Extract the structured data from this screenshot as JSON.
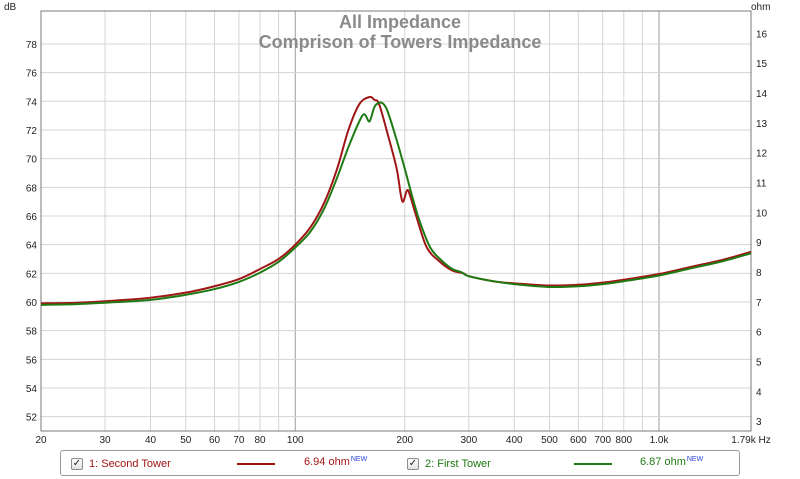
{
  "chart_data": {
    "type": "line",
    "title": "All Impedance",
    "subtitle": "Comprison of Towers Impedance",
    "x_unit": "Hz",
    "y_left_unit": "dB",
    "y_right_unit": "ohm",
    "x_scale": "log",
    "xlim": [
      20,
      1790
    ],
    "ylim_left": [
      51,
      80.3
    ],
    "ylim_right": [
      2.67,
      16.75
    ],
    "x_ticks": [
      {
        "v": 20,
        "label": "20",
        "major": true
      },
      {
        "v": 30,
        "label": "30",
        "major": false
      },
      {
        "v": 40,
        "label": "40",
        "major": false
      },
      {
        "v": 50,
        "label": "50",
        "major": false
      },
      {
        "v": 60,
        "label": "60",
        "major": false
      },
      {
        "v": 70,
        "label": "70",
        "major": false
      },
      {
        "v": 80,
        "label": "80",
        "major": false
      },
      {
        "v": 90,
        "label": "",
        "major": false
      },
      {
        "v": 100,
        "label": "100",
        "major": true
      },
      {
        "v": 200,
        "label": "200",
        "major": false
      },
      {
        "v": 300,
        "label": "300",
        "major": false
      },
      {
        "v": 400,
        "label": "400",
        "major": false
      },
      {
        "v": 500,
        "label": "500",
        "major": false
      },
      {
        "v": 600,
        "label": "600",
        "major": false
      },
      {
        "v": 700,
        "label": "700",
        "major": false
      },
      {
        "v": 800,
        "label": "800",
        "major": false
      },
      {
        "v": 900,
        "label": "",
        "major": false
      },
      {
        "v": 1000,
        "label": "1.0k",
        "major": true
      },
      {
        "v": 1790,
        "label": "1.79k Hz",
        "major": false
      }
    ],
    "y_left_ticks": [
      52,
      54,
      56,
      58,
      60,
      62,
      64,
      66,
      68,
      70,
      72,
      74,
      76,
      78
    ],
    "y_right_ticks": [
      3,
      4,
      5,
      6,
      7,
      8,
      9,
      10,
      11,
      12,
      13,
      14,
      15,
      16
    ],
    "grid": true,
    "legend_position": "bottom",
    "series": [
      {
        "name": "1: Second Tower",
        "color": "#a01515",
        "checked": true,
        "value_label": "6.94 ohm",
        "badge": "NEW",
        "points": [
          [
            20,
            59.9
          ],
          [
            25,
            59.95
          ],
          [
            30,
            60.05
          ],
          [
            40,
            60.3
          ],
          [
            50,
            60.65
          ],
          [
            60,
            61.1
          ],
          [
            70,
            61.6
          ],
          [
            80,
            62.3
          ],
          [
            90,
            63.0
          ],
          [
            100,
            64.0
          ],
          [
            110,
            65.2
          ],
          [
            120,
            66.9
          ],
          [
            130,
            69.2
          ],
          [
            140,
            72.0
          ],
          [
            150,
            73.8
          ],
          [
            160,
            74.3
          ],
          [
            165,
            74.1
          ],
          [
            170,
            73.8
          ],
          [
            180,
            71.6
          ],
          [
            190,
            69.3
          ],
          [
            195,
            67.5
          ],
          [
            198,
            67.0
          ],
          [
            203,
            67.8
          ],
          [
            207,
            67.4
          ],
          [
            215,
            66.0
          ],
          [
            230,
            63.8
          ],
          [
            250,
            62.8
          ],
          [
            270,
            62.2
          ],
          [
            290,
            62.0
          ],
          [
            300,
            61.8
          ],
          [
            350,
            61.45
          ],
          [
            400,
            61.3
          ],
          [
            500,
            61.15
          ],
          [
            600,
            61.2
          ],
          [
            700,
            61.35
          ],
          [
            800,
            61.55
          ],
          [
            1000,
            61.95
          ],
          [
            1200,
            62.4
          ],
          [
            1500,
            62.95
          ],
          [
            1790,
            63.5
          ]
        ]
      },
      {
        "name": "2: First Tower",
        "color": "#1e7a12",
        "checked": true,
        "value_label": "6.87 ohm",
        "badge": "NEW",
        "points": [
          [
            20,
            59.8
          ],
          [
            25,
            59.85
          ],
          [
            30,
            59.95
          ],
          [
            40,
            60.15
          ],
          [
            50,
            60.5
          ],
          [
            60,
            60.9
          ],
          [
            70,
            61.4
          ],
          [
            80,
            62.05
          ],
          [
            90,
            62.8
          ],
          [
            100,
            63.8
          ],
          [
            110,
            64.9
          ],
          [
            120,
            66.5
          ],
          [
            130,
            68.6
          ],
          [
            140,
            70.8
          ],
          [
            150,
            72.6
          ],
          [
            155,
            73.1
          ],
          [
            160,
            72.6
          ],
          [
            165,
            73.6
          ],
          [
            170,
            73.9
          ],
          [
            175,
            73.8
          ],
          [
            180,
            73.2
          ],
          [
            190,
            71.3
          ],
          [
            200,
            69.3
          ],
          [
            210,
            67.3
          ],
          [
            220,
            65.6
          ],
          [
            235,
            63.8
          ],
          [
            250,
            63.0
          ],
          [
            270,
            62.3
          ],
          [
            285,
            62.1
          ],
          [
            300,
            61.8
          ],
          [
            350,
            61.45
          ],
          [
            400,
            61.25
          ],
          [
            500,
            61.05
          ],
          [
            600,
            61.1
          ],
          [
            700,
            61.25
          ],
          [
            800,
            61.45
          ],
          [
            1000,
            61.85
          ],
          [
            1200,
            62.3
          ],
          [
            1500,
            62.85
          ],
          [
            1790,
            63.4
          ]
        ]
      }
    ]
  }
}
